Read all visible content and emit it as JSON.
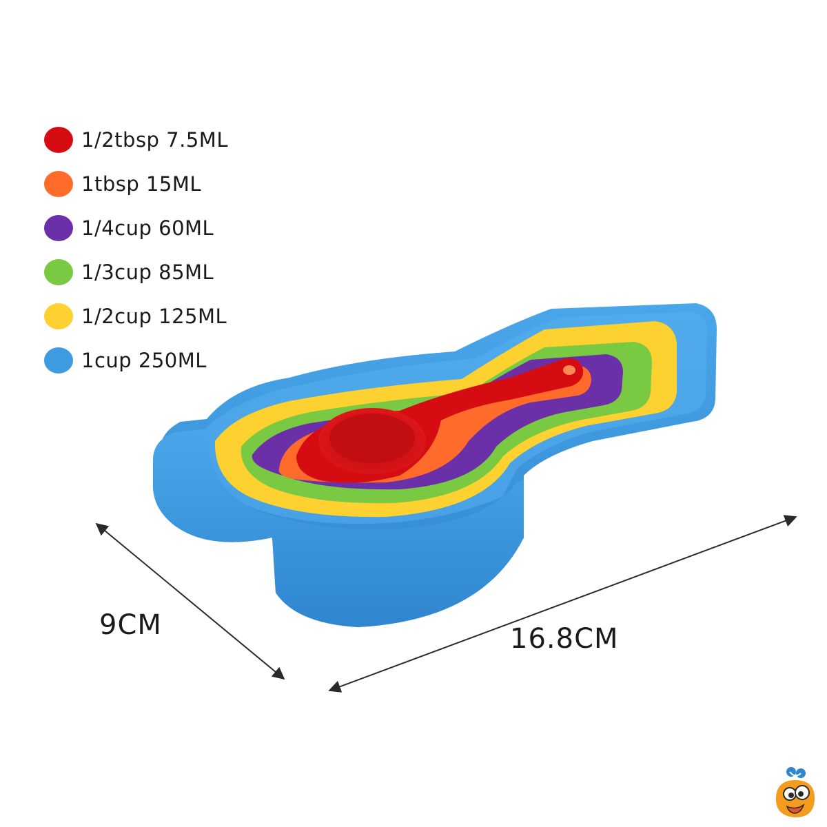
{
  "legend": {
    "items": [
      {
        "label": "1/2tbsp 7.5ML",
        "color": "#d50d12"
      },
      {
        "label": "1tbsp 15ML",
        "color": "#ff6b2b"
      },
      {
        "label": "1/4cup 60ML",
        "color": "#6b2fa8"
      },
      {
        "label": "1/3cup 85ML",
        "color": "#7ac943"
      },
      {
        "label": "1/2cup 125ML",
        "color": "#fdd12f"
      },
      {
        "label": "1cup 250ML",
        "color": "#3e9be0"
      }
    ]
  },
  "dimensions": {
    "width_label": "9CM",
    "length_label": "16.8CM"
  },
  "product": {
    "colors": {
      "blue": "#3e9be0",
      "yellow": "#fdd12f",
      "green": "#7ac943",
      "purple": "#6b2fa8",
      "orange": "#ff6b2b",
      "red": "#d50d12"
    }
  }
}
